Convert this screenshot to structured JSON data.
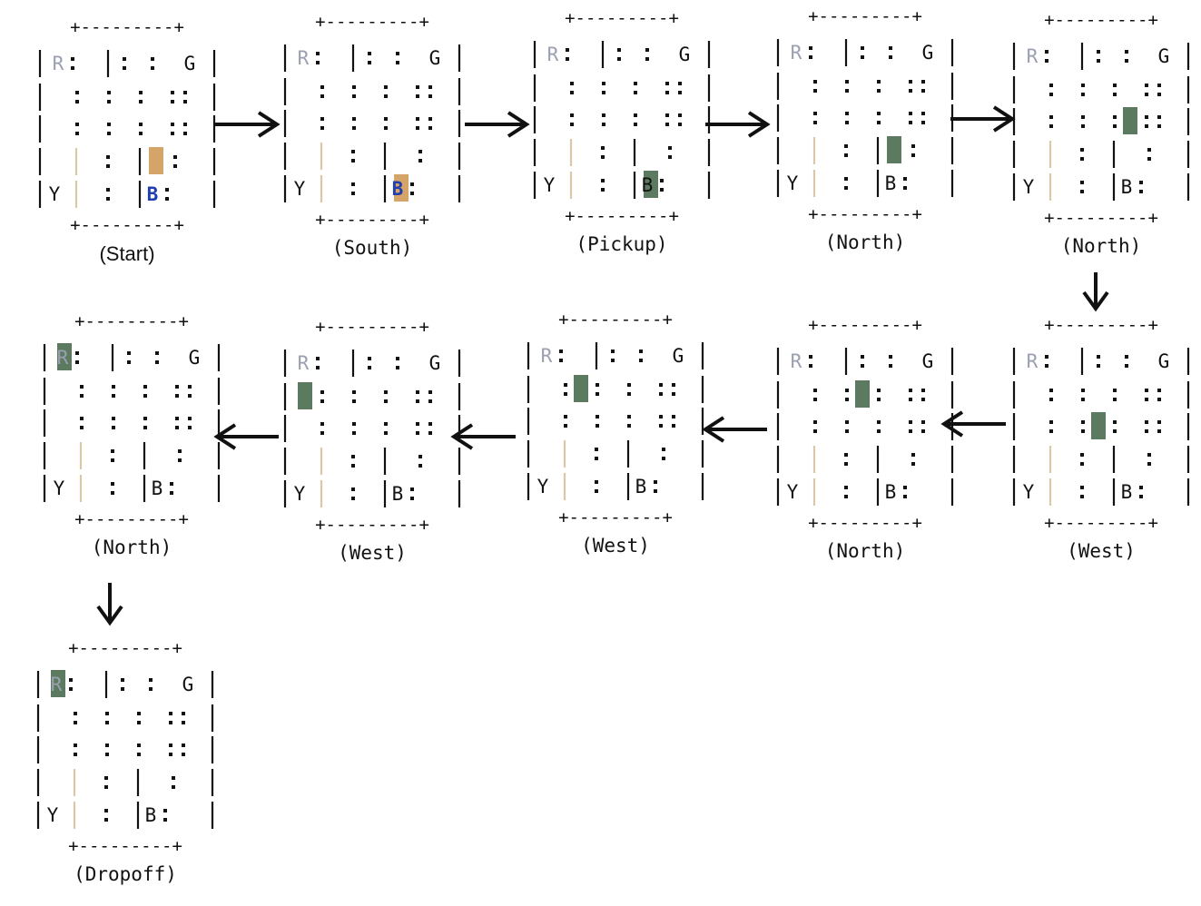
{
  "diagram": {
    "border": {
      "top": "+---------+",
      "bottom": "+---------+"
    },
    "labels": {
      "R": "R",
      "G": "G",
      "Y": "Y",
      "B": "B"
    },
    "colors": {
      "taxi_empty": "#d4a468",
      "taxi_full": "#5b7a5f",
      "passenger_waiting": "#1f3fb0",
      "depot_faded": "#9aa0b0",
      "wall": "#111111",
      "faded_wall": "#d8c8a8",
      "arrow": "#111111",
      "caption": "#111111"
    },
    "steps": [
      {
        "caption": "(Start)",
        "taxi": {
          "row": 3,
          "col": 3
        },
        "taxi_state": "empty",
        "passenger_waiting": true
      },
      {
        "caption": "(South)",
        "taxi": {
          "row": 4,
          "col": 3
        },
        "taxi_state": "empty",
        "passenger_waiting": true
      },
      {
        "caption": "(Pickup)",
        "taxi": {
          "row": 4,
          "col": 3
        },
        "taxi_state": "full",
        "passenger_waiting": false
      },
      {
        "caption": "(North)",
        "taxi": {
          "row": 3,
          "col": 3
        },
        "taxi_state": "full",
        "passenger_waiting": false
      },
      {
        "caption": "(North)",
        "taxi": {
          "row": 2,
          "col": 3
        },
        "taxi_state": "full",
        "passenger_waiting": false
      },
      {
        "caption": "(West)",
        "taxi": {
          "row": 2,
          "col": 2
        },
        "taxi_state": "full",
        "passenger_waiting": false
      },
      {
        "caption": "(North)",
        "taxi": {
          "row": 1,
          "col": 2
        },
        "taxi_state": "full",
        "passenger_waiting": false
      },
      {
        "caption": "(West)",
        "taxi": {
          "row": 1,
          "col": 1
        },
        "taxi_state": "full",
        "passenger_waiting": false
      },
      {
        "caption": "(West)",
        "taxi": {
          "row": 1,
          "col": 0
        },
        "taxi_state": "full",
        "passenger_waiting": false
      },
      {
        "caption": "(North)",
        "taxi": {
          "row": 0,
          "col": 0
        },
        "taxi_state": "full",
        "passenger_waiting": false
      },
      {
        "caption": "(Dropoff)",
        "taxi": {
          "row": 0,
          "col": 0
        },
        "taxi_state": "full",
        "passenger_waiting": false
      }
    ]
  }
}
